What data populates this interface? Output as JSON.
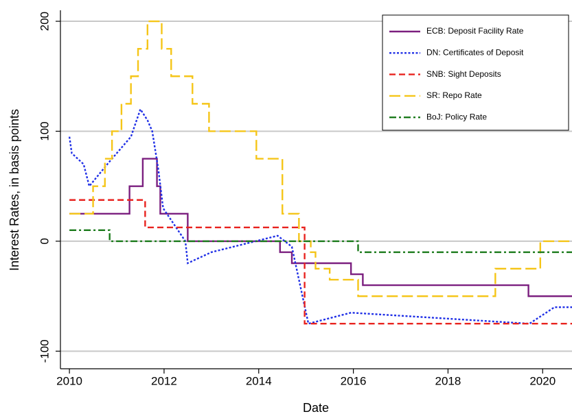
{
  "chart_data": {
    "type": "line",
    "x_label": "Date",
    "y_label": "Interest Rates, in basis points",
    "xlim": [
      2009.81,
      2020.62
    ],
    "ylim": [
      -116,
      210
    ],
    "xticks": [
      2010,
      2012,
      2014,
      2016,
      2018,
      2020
    ],
    "yticks": [
      -100,
      0,
      100,
      200
    ],
    "grid": true,
    "legend": "upper right",
    "series": [
      {
        "name": "ECB: Deposit Facility Rate",
        "color": "#7b1f7f",
        "line_style": "solid",
        "x": [
          2010,
          2011.27,
          2011.27,
          2011.55,
          2011.55,
          2011.85,
          2011.85,
          2011.92,
          2011.92,
          2012.5,
          2012.5,
          2014.45,
          2014.45,
          2014.7,
          2014.7,
          2015.95,
          2015.95,
          2016.2,
          2016.2,
          2019.7,
          2019.7,
          2020.62
        ],
        "values": [
          25,
          25,
          50,
          50,
          75,
          75,
          50,
          50,
          25,
          25,
          0,
          0,
          -10,
          -10,
          -20,
          -20,
          -30,
          -30,
          -40,
          -40,
          -50,
          -50
        ]
      },
      {
        "name": "DN: Certificates of Deposit",
        "color": "#1f2fe6",
        "line_style": "dotted",
        "x": [
          2010,
          2010.05,
          2010.05,
          2010.3,
          2010.3,
          2010.42,
          2010.42,
          2010.8,
          2010.8,
          2011.3,
          2011.3,
          2011.5,
          2011.5,
          2011.65,
          2011.65,
          2011.75,
          2011.75,
          2011.88,
          2011.88,
          2011.98,
          2011.98,
          2012.45,
          2012.45,
          2012.5,
          2012.5,
          2013.0,
          2013.0,
          2014.4,
          2014.4,
          2014.7,
          2014.7,
          2015.05,
          2015.05,
          2015.95,
          2015.95,
          2019.72,
          2019.72,
          2020.25,
          2020.25,
          2020.62
        ],
        "values": [
          95,
          80,
          80,
          70,
          70,
          50,
          50,
          70,
          70,
          95,
          95,
          120,
          120,
          110,
          110,
          100,
          100,
          65,
          65,
          30,
          30,
          0,
          0,
          -20,
          -20,
          -10,
          -10,
          5,
          5,
          -5,
          -5,
          -75,
          -75,
          -65,
          -65,
          -75,
          -75,
          -60,
          -60,
          -60
        ]
      },
      {
        "name": "SNB: Sight Deposits",
        "color": "#e8231f",
        "line_style": "dashed",
        "x": [
          2010,
          2011.6,
          2011.6,
          2014.97,
          2014.97,
          2020.62
        ],
        "values": [
          37.5,
          37.5,
          12.5,
          12.5,
          -75,
          -75
        ]
      },
      {
        "name": "SR: Repo Rate",
        "color": "#f5c518",
        "line_style": "longdash",
        "x": [
          2010,
          2010.5,
          2010.5,
          2010.75,
          2010.75,
          2010.9,
          2010.9,
          2011.1,
          2011.1,
          2011.3,
          2011.3,
          2011.45,
          2011.45,
          2011.65,
          2011.65,
          2011.95,
          2011.95,
          2012.15,
          2012.15,
          2012.6,
          2012.6,
          2012.95,
          2012.95,
          2013.95,
          2013.95,
          2014.5,
          2014.5,
          2014.85,
          2014.85,
          2015.1,
          2015.1,
          2015.2,
          2015.2,
          2015.5,
          2015.5,
          2016.1,
          2016.1,
          2019.0,
          2019.0,
          2019.95,
          2019.95,
          2020.62
        ],
        "values": [
          25,
          25,
          50,
          50,
          75,
          75,
          100,
          100,
          125,
          125,
          150,
          150,
          175,
          175,
          200,
          200,
          175,
          175,
          150,
          150,
          125,
          125,
          100,
          100,
          75,
          75,
          25,
          25,
          0,
          0,
          -10,
          -10,
          -25,
          -25,
          -35,
          -35,
          -50,
          -50,
          -25,
          -25,
          0,
          0
        ]
      },
      {
        "name": "BoJ: Policy Rate",
        "color": "#1a7a1a",
        "line_style": "dashdot",
        "x": [
          2010,
          2010.85,
          2010.85,
          2016.1,
          2016.1,
          2020.62
        ],
        "values": [
          10,
          10,
          0,
          0,
          -10,
          -10
        ]
      }
    ]
  }
}
